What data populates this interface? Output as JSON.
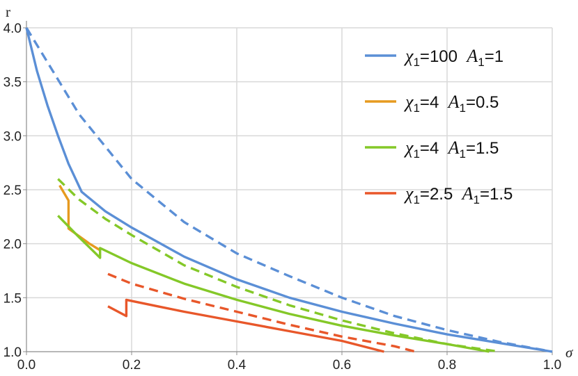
{
  "chart_data": {
    "type": "line",
    "xlabel": "σ",
    "ylabel": "r",
    "xlim": [
      0.0,
      1.0
    ],
    "ylim": [
      1.0,
      4.0
    ],
    "xticks": [
      "0.0",
      "0.2",
      "0.4",
      "0.6",
      "0.8",
      "1.0"
    ],
    "yticks": [
      "1.0",
      "1.5",
      "2.0",
      "2.5",
      "3.0",
      "3.5",
      "4.0"
    ],
    "grid": true,
    "legend_position": "top-right",
    "colors": {
      "blue": "#5b8fd6",
      "orange": "#e69a1f",
      "green": "#84c828",
      "red": "#e8572a",
      "grid": "#d9d9d9",
      "axis": "#8c8c8c"
    },
    "legend": [
      {
        "chi": "χ",
        "chi_sub": "1",
        "chi_val": "=100",
        "a": "A",
        "a_sub": "1",
        "a_val": "=1",
        "color": "#5b8fd6"
      },
      {
        "chi": "χ",
        "chi_sub": "1",
        "chi_val": "=4",
        "a": "A",
        "a_sub": "1",
        "a_val": "=0.5",
        "color": "#e69a1f"
      },
      {
        "chi": "χ",
        "chi_sub": "1",
        "chi_val": "=4",
        "a": "A",
        "a_sub": "1",
        "a_val": "=1.5",
        "color": "#84c828"
      },
      {
        "chi": "χ",
        "chi_sub": "1",
        "chi_val": "=2.5",
        "a": "A",
        "a_sub": "1",
        "a_val": "=1.5",
        "color": "#e8572a"
      }
    ],
    "series": [
      {
        "color": "#5b8fd6",
        "dash": false,
        "points": [
          [
            0.0,
            4.0
          ],
          [
            0.02,
            3.6
          ],
          [
            0.04,
            3.28
          ],
          [
            0.06,
            3.0
          ],
          [
            0.08,
            2.74
          ],
          [
            0.105,
            2.48
          ],
          [
            0.15,
            2.3
          ],
          [
            0.2,
            2.15
          ],
          [
            0.3,
            1.88
          ],
          [
            0.4,
            1.67
          ],
          [
            0.5,
            1.5
          ],
          [
            0.6,
            1.37
          ],
          [
            0.7,
            1.26
          ],
          [
            0.8,
            1.16
          ],
          [
            0.9,
            1.08
          ],
          [
            1.0,
            1.0
          ]
        ]
      },
      {
        "color": "#5b8fd6",
        "dash": true,
        "points": [
          [
            0.0,
            4.0
          ],
          [
            0.05,
            3.6
          ],
          [
            0.1,
            3.2
          ],
          [
            0.15,
            2.9
          ],
          [
            0.2,
            2.6
          ],
          [
            0.3,
            2.2
          ],
          [
            0.4,
            1.91
          ],
          [
            0.5,
            1.7
          ],
          [
            0.6,
            1.5
          ],
          [
            0.7,
            1.33
          ],
          [
            0.8,
            1.2
          ],
          [
            0.9,
            1.09
          ],
          [
            1.0,
            1.0
          ]
        ]
      },
      {
        "color": "#e69a1f",
        "dash": false,
        "points": [
          [
            0.063,
            2.54
          ],
          [
            0.08,
            2.4
          ],
          [
            0.08,
            2.14
          ],
          [
            0.1,
            2.07
          ],
          [
            0.12,
            2.0
          ],
          [
            0.14,
            1.94
          ]
        ]
      },
      {
        "color": "#84c828",
        "dash": false,
        "points": [
          [
            0.06,
            2.26
          ],
          [
            0.1,
            2.06
          ],
          [
            0.14,
            1.87
          ],
          [
            0.14,
            1.96
          ],
          [
            0.2,
            1.82
          ],
          [
            0.3,
            1.63
          ],
          [
            0.4,
            1.48
          ],
          [
            0.5,
            1.35
          ],
          [
            0.6,
            1.24
          ],
          [
            0.7,
            1.15
          ],
          [
            0.8,
            1.07
          ],
          [
            0.88,
            1.0
          ]
        ]
      },
      {
        "color": "#84c828",
        "dash": true,
        "points": [
          [
            0.06,
            2.6
          ],
          [
            0.1,
            2.41
          ],
          [
            0.15,
            2.23
          ],
          [
            0.2,
            2.08
          ],
          [
            0.3,
            1.8
          ],
          [
            0.4,
            1.6
          ],
          [
            0.5,
            1.43
          ],
          [
            0.6,
            1.29
          ],
          [
            0.7,
            1.17
          ],
          [
            0.8,
            1.07
          ],
          [
            0.9,
            1.0
          ]
        ]
      },
      {
        "color": "#e8572a",
        "dash": false,
        "points": [
          [
            0.155,
            1.42
          ],
          [
            0.19,
            1.33
          ],
          [
            0.19,
            1.48
          ],
          [
            0.25,
            1.42
          ],
          [
            0.3,
            1.37
          ],
          [
            0.4,
            1.28
          ],
          [
            0.5,
            1.19
          ],
          [
            0.6,
            1.1
          ],
          [
            0.68,
            1.0
          ]
        ]
      },
      {
        "color": "#e8572a",
        "dash": true,
        "points": [
          [
            0.155,
            1.72
          ],
          [
            0.2,
            1.63
          ],
          [
            0.3,
            1.49
          ],
          [
            0.4,
            1.37
          ],
          [
            0.5,
            1.25
          ],
          [
            0.6,
            1.14
          ],
          [
            0.7,
            1.05
          ],
          [
            0.74,
            1.0
          ]
        ]
      }
    ]
  }
}
